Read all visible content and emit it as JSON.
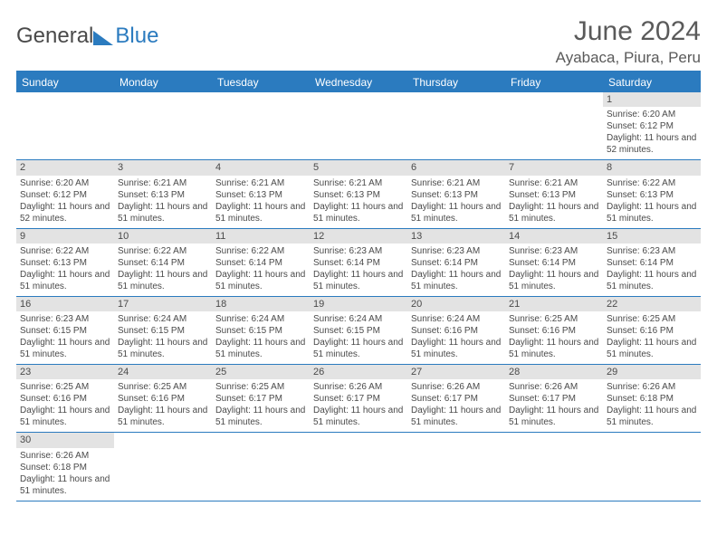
{
  "branding": {
    "word1": "General",
    "word2": "Blue",
    "word1_color": "#4a4a4a",
    "word2_color": "#2b7bbf"
  },
  "header": {
    "title": "June 2024",
    "location": "Ayabaca, Piura, Peru"
  },
  "colors": {
    "accent": "#2b7bbf",
    "band": "#e3e3e3",
    "text": "#4a4a4a",
    "bg": "#ffffff"
  },
  "dow": [
    "Sunday",
    "Monday",
    "Tuesday",
    "Wednesday",
    "Thursday",
    "Friday",
    "Saturday"
  ],
  "labels": {
    "sunrise": "Sunrise:",
    "sunset": "Sunset:",
    "daylight": "Daylight:"
  },
  "weeks": [
    [
      null,
      null,
      null,
      null,
      null,
      null,
      {
        "n": "1",
        "sr": "6:20 AM",
        "ss": "6:12 PM",
        "dl": "11 hours and 52 minutes."
      }
    ],
    [
      {
        "n": "2",
        "sr": "6:20 AM",
        "ss": "6:12 PM",
        "dl": "11 hours and 52 minutes."
      },
      {
        "n": "3",
        "sr": "6:21 AM",
        "ss": "6:13 PM",
        "dl": "11 hours and 51 minutes."
      },
      {
        "n": "4",
        "sr": "6:21 AM",
        "ss": "6:13 PM",
        "dl": "11 hours and 51 minutes."
      },
      {
        "n": "5",
        "sr": "6:21 AM",
        "ss": "6:13 PM",
        "dl": "11 hours and 51 minutes."
      },
      {
        "n": "6",
        "sr": "6:21 AM",
        "ss": "6:13 PM",
        "dl": "11 hours and 51 minutes."
      },
      {
        "n": "7",
        "sr": "6:21 AM",
        "ss": "6:13 PM",
        "dl": "11 hours and 51 minutes."
      },
      {
        "n": "8",
        "sr": "6:22 AM",
        "ss": "6:13 PM",
        "dl": "11 hours and 51 minutes."
      }
    ],
    [
      {
        "n": "9",
        "sr": "6:22 AM",
        "ss": "6:13 PM",
        "dl": "11 hours and 51 minutes."
      },
      {
        "n": "10",
        "sr": "6:22 AM",
        "ss": "6:14 PM",
        "dl": "11 hours and 51 minutes."
      },
      {
        "n": "11",
        "sr": "6:22 AM",
        "ss": "6:14 PM",
        "dl": "11 hours and 51 minutes."
      },
      {
        "n": "12",
        "sr": "6:23 AM",
        "ss": "6:14 PM",
        "dl": "11 hours and 51 minutes."
      },
      {
        "n": "13",
        "sr": "6:23 AM",
        "ss": "6:14 PM",
        "dl": "11 hours and 51 minutes."
      },
      {
        "n": "14",
        "sr": "6:23 AM",
        "ss": "6:14 PM",
        "dl": "11 hours and 51 minutes."
      },
      {
        "n": "15",
        "sr": "6:23 AM",
        "ss": "6:14 PM",
        "dl": "11 hours and 51 minutes."
      }
    ],
    [
      {
        "n": "16",
        "sr": "6:23 AM",
        "ss": "6:15 PM",
        "dl": "11 hours and 51 minutes."
      },
      {
        "n": "17",
        "sr": "6:24 AM",
        "ss": "6:15 PM",
        "dl": "11 hours and 51 minutes."
      },
      {
        "n": "18",
        "sr": "6:24 AM",
        "ss": "6:15 PM",
        "dl": "11 hours and 51 minutes."
      },
      {
        "n": "19",
        "sr": "6:24 AM",
        "ss": "6:15 PM",
        "dl": "11 hours and 51 minutes."
      },
      {
        "n": "20",
        "sr": "6:24 AM",
        "ss": "6:16 PM",
        "dl": "11 hours and 51 minutes."
      },
      {
        "n": "21",
        "sr": "6:25 AM",
        "ss": "6:16 PM",
        "dl": "11 hours and 51 minutes."
      },
      {
        "n": "22",
        "sr": "6:25 AM",
        "ss": "6:16 PM",
        "dl": "11 hours and 51 minutes."
      }
    ],
    [
      {
        "n": "23",
        "sr": "6:25 AM",
        "ss": "6:16 PM",
        "dl": "11 hours and 51 minutes."
      },
      {
        "n": "24",
        "sr": "6:25 AM",
        "ss": "6:16 PM",
        "dl": "11 hours and 51 minutes."
      },
      {
        "n": "25",
        "sr": "6:25 AM",
        "ss": "6:17 PM",
        "dl": "11 hours and 51 minutes."
      },
      {
        "n": "26",
        "sr": "6:26 AM",
        "ss": "6:17 PM",
        "dl": "11 hours and 51 minutes."
      },
      {
        "n": "27",
        "sr": "6:26 AM",
        "ss": "6:17 PM",
        "dl": "11 hours and 51 minutes."
      },
      {
        "n": "28",
        "sr": "6:26 AM",
        "ss": "6:17 PM",
        "dl": "11 hours and 51 minutes."
      },
      {
        "n": "29",
        "sr": "6:26 AM",
        "ss": "6:18 PM",
        "dl": "11 hours and 51 minutes."
      }
    ],
    [
      {
        "n": "30",
        "sr": "6:26 AM",
        "ss": "6:18 PM",
        "dl": "11 hours and 51 minutes."
      },
      null,
      null,
      null,
      null,
      null,
      null
    ]
  ]
}
